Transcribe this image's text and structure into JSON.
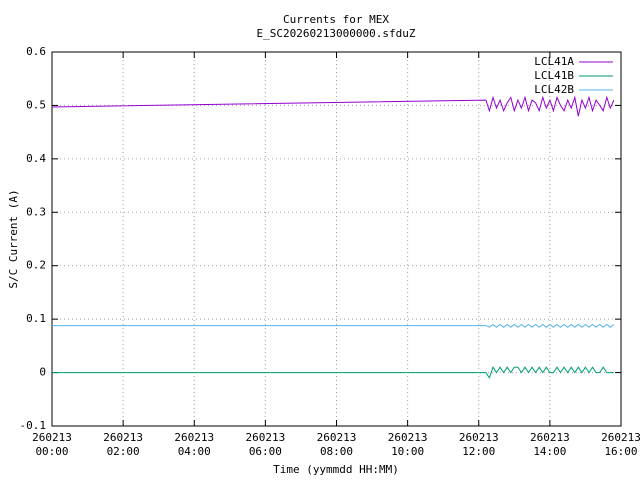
{
  "chart_data": {
    "type": "line",
    "title": "Currents for MEX",
    "subtitle": "E_SC20260213000000.sfduZ",
    "x_label": "Time (yymmdd HH:MM)",
    "y_label": "S/C Current (A)",
    "x": [
      0,
      12.2,
      12.3,
      12.4,
      12.5,
      12.6,
      12.7,
      12.8,
      12.9,
      13,
      13.1,
      13.2,
      13.3,
      13.4,
      13.5,
      13.6,
      13.7,
      13.8,
      13.9,
      14,
      14.1,
      14.2,
      14.3,
      14.4,
      14.5,
      14.6,
      14.7,
      14.8,
      14.9,
      15,
      15.1,
      15.2,
      15.3,
      15.4,
      15.5,
      15.6,
      15.7,
      15.8
    ],
    "series": [
      {
        "name": "LCL41A",
        "color": "#9400d3",
        "values": [
          0.497,
          0.51,
          0.49,
          0.515,
          0.495,
          0.51,
          0.49,
          0.505,
          0.515,
          0.49,
          0.51,
          0.495,
          0.515,
          0.49,
          0.51,
          0.505,
          0.49,
          0.515,
          0.495,
          0.51,
          0.49,
          0.515,
          0.5,
          0.49,
          0.51,
          0.495,
          0.515,
          0.48,
          0.51,
          0.495,
          0.515,
          0.49,
          0.51,
          0.5,
          0.49,
          0.515,
          0.495,
          0.51
        ]
      },
      {
        "name": "LCL41B",
        "color": "#009e73",
        "values": [
          0,
          0,
          -0.01,
          0.01,
          0,
          0.01,
          0,
          0.01,
          0,
          0.01,
          0.01,
          0,
          0.01,
          0,
          0.01,
          0,
          0.01,
          0,
          0.01,
          0,
          0,
          0.01,
          0,
          0.01,
          0,
          0.01,
          0,
          0.01,
          0,
          0.01,
          0,
          0.01,
          0,
          0,
          0.01,
          0,
          0,
          0
        ]
      },
      {
        "name": "LCL42B",
        "color": "#56b4e9",
        "values": [
          0.088,
          0.088,
          0.085,
          0.09,
          0.085,
          0.09,
          0.085,
          0.09,
          0.085,
          0.09,
          0.085,
          0.09,
          0.085,
          0.09,
          0.085,
          0.09,
          0.085,
          0.09,
          0.085,
          0.09,
          0.085,
          0.09,
          0.085,
          0.09,
          0.085,
          0.09,
          0.085,
          0.09,
          0.085,
          0.09,
          0.085,
          0.09,
          0.085,
          0.09,
          0.085,
          0.09,
          0.085,
          0.09
        ]
      }
    ],
    "xlim": [
      0,
      16
    ],
    "xticks": [
      {
        "value": 0,
        "label": "260213\n00:00"
      },
      {
        "value": 2,
        "label": "260213\n02:00"
      },
      {
        "value": 4,
        "label": "260213\n04:00"
      },
      {
        "value": 6,
        "label": "260213\n06:00"
      },
      {
        "value": 8,
        "label": "260213\n08:00"
      },
      {
        "value": 10,
        "label": "260213\n10:00"
      },
      {
        "value": 12,
        "label": "260213\n12:00"
      },
      {
        "value": 14,
        "label": "260213\n14:00"
      },
      {
        "value": 16,
        "label": "260213\n16:00"
      }
    ],
    "ylim": [
      -0.1,
      0.6
    ],
    "yticks": [
      -0.1,
      0,
      0.1,
      0.2,
      0.3,
      0.4,
      0.5,
      0.6
    ],
    "grid": true,
    "legend": "top-right"
  }
}
